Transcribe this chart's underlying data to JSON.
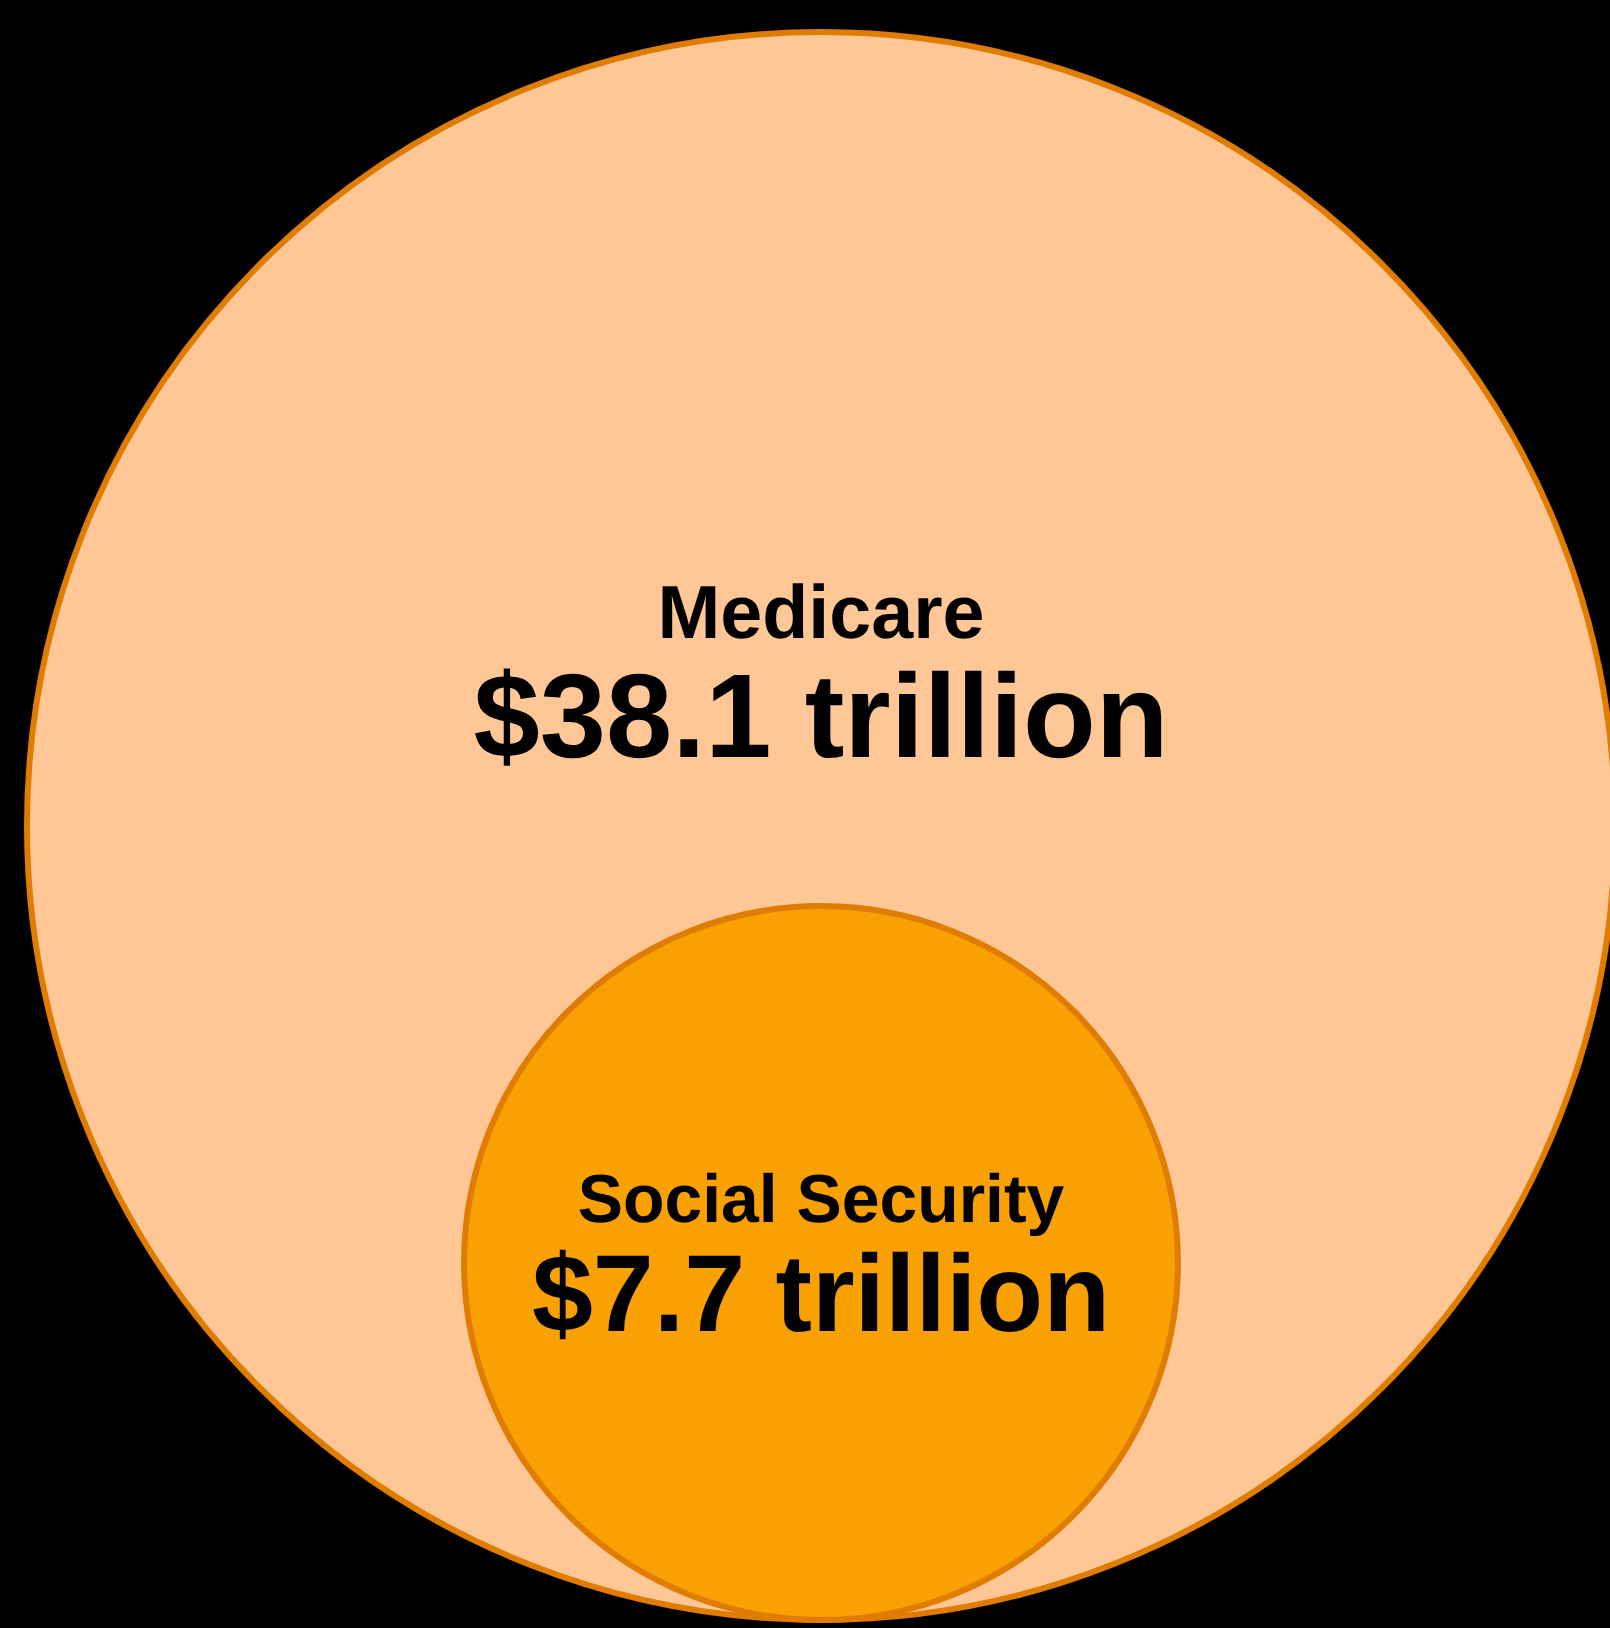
{
  "chart_data": {
    "type": "other",
    "categories": [
      "Medicare",
      "Social Security"
    ],
    "values": [
      38.1,
      7.7
    ],
    "value_labels": [
      "$38.1 trillion",
      "$7.7 trillion"
    ],
    "colors": [
      "#fec795",
      "#f9a002"
    ]
  }
}
